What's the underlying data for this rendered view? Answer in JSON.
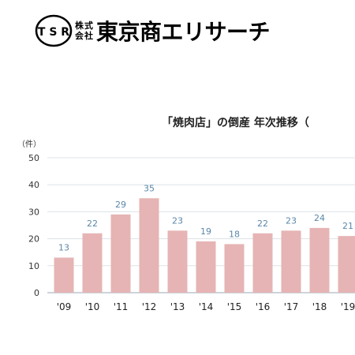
{
  "logo": {
    "mark": "T S R",
    "small_line1": "株式",
    "small_line2": "会社",
    "name": "東京商エリサーチ"
  },
  "chart_data": {
    "type": "bar",
    "title": "「焼肉店」の倒産 年次推移（",
    "ylabel": "（件）",
    "xlabel": "",
    "categories": [
      "'09",
      "'10",
      "'11",
      "'12",
      "'13",
      "'14",
      "'15",
      "'16",
      "'17",
      "'18",
      "'19"
    ],
    "values": [
      13,
      22,
      29,
      35,
      23,
      19,
      18,
      22,
      23,
      24,
      21
    ],
    "ylim": [
      0,
      50
    ],
    "yticks": [
      0,
      10,
      20,
      30,
      40,
      50
    ],
    "grid": true,
    "bar_color": "#e6b4b4",
    "label_color": "#5b86a8"
  }
}
